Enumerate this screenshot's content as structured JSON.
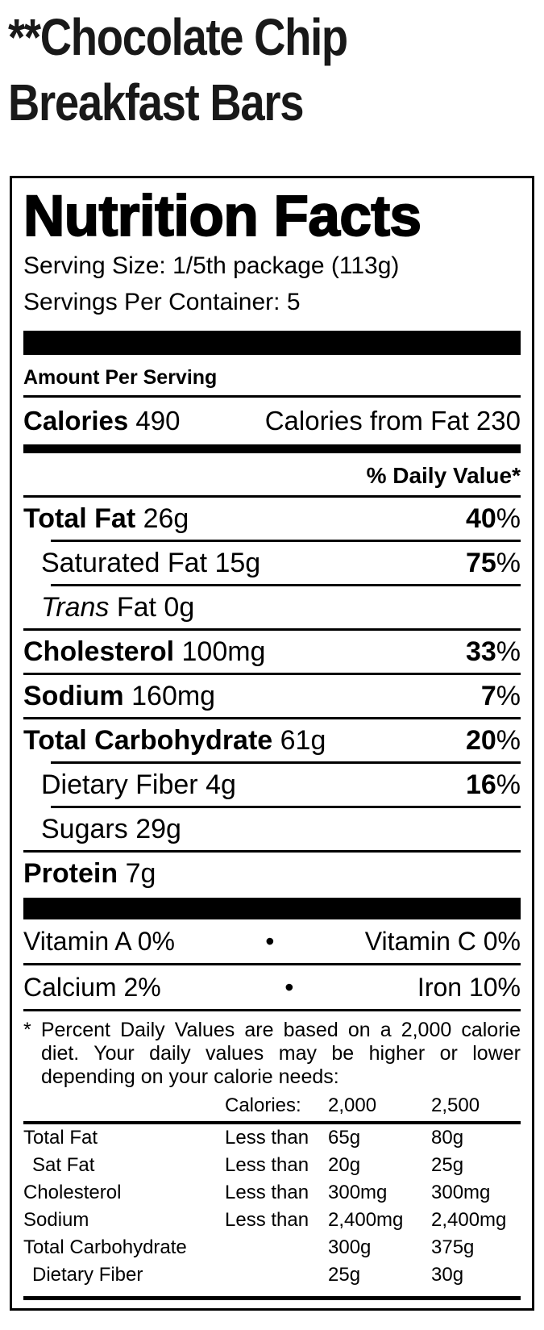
{
  "colors": {
    "text": "#000000",
    "background": "#ffffff",
    "title": "#191919"
  },
  "page_title": {
    "line1": "**Chocolate Chip",
    "line2": "Breakfast Bars"
  },
  "label": {
    "heading": "Nutrition Facts",
    "serving_size": "Serving Size: 1/5th package (113g)",
    "servings_per_container": "Servings Per Container: 5",
    "amount_per_serving": "Amount Per Serving",
    "calories": {
      "label": "Calories",
      "value": "490",
      "from_fat": "Calories from Fat 230"
    },
    "daily_value_header": "% Daily Value*",
    "nutrients": [
      {
        "name": "Total Fat",
        "amount": "26g",
        "dv": "40",
        "dv_suffix": "%"
      },
      {
        "name": "Saturated Fat",
        "amount": "15g",
        "dv": "75",
        "dv_suffix": "%"
      },
      {
        "name": "Trans",
        "amount": "Fat 0g"
      },
      {
        "name": "Cholesterol",
        "amount": "100mg",
        "dv": "33",
        "dv_suffix": "%"
      },
      {
        "name": "Sodium",
        "amount": "160mg",
        "dv": "7",
        "dv_suffix": "%"
      },
      {
        "name": "Total Carbohydrate",
        "amount": "61g",
        "dv": "20",
        "dv_suffix": "%"
      },
      {
        "name": "Dietary Fiber",
        "amount": "4g",
        "dv": "16",
        "dv_suffix": "%"
      },
      {
        "name": "Sugars",
        "amount": "29g"
      },
      {
        "name": "Protein",
        "amount": "7g"
      }
    ],
    "micronutrients": [
      {
        "left": "Vitamin A 0%",
        "separator": "•",
        "right": "Vitamin C 0%"
      },
      {
        "left": "Calcium 2%",
        "separator": "•",
        "right": "Iron 10%"
      }
    ],
    "footnote": {
      "marker": "*",
      "text": "Percent Daily Values are based on a 2,000 calorie diet. Your daily values may be higher or lower depending on your calorie needs:"
    },
    "reference_table": {
      "header": {
        "calories_label": "Calories:",
        "col_2000": "2,000",
        "col_2500": "2,500"
      },
      "rows": [
        {
          "name": "Total Fat",
          "qualifier": "Less than",
          "v2000": "65g",
          "v2500": "80g"
        },
        {
          "name": "Sat Fat",
          "qualifier": "Less than",
          "v2000": "20g",
          "v2500": "25g"
        },
        {
          "name": "Cholesterol",
          "qualifier": "Less than",
          "v2000": "300mg",
          "v2500": "300mg"
        },
        {
          "name": "Sodium",
          "qualifier": "Less than",
          "v2000": "2,400mg",
          "v2500": "2,400mg"
        },
        {
          "name": "Total Carbohydrate",
          "qualifier": "",
          "v2000": "300g",
          "v2500": "375g"
        },
        {
          "name": "Dietary Fiber",
          "qualifier": "",
          "v2000": "25g",
          "v2500": "30g"
        }
      ]
    }
  }
}
